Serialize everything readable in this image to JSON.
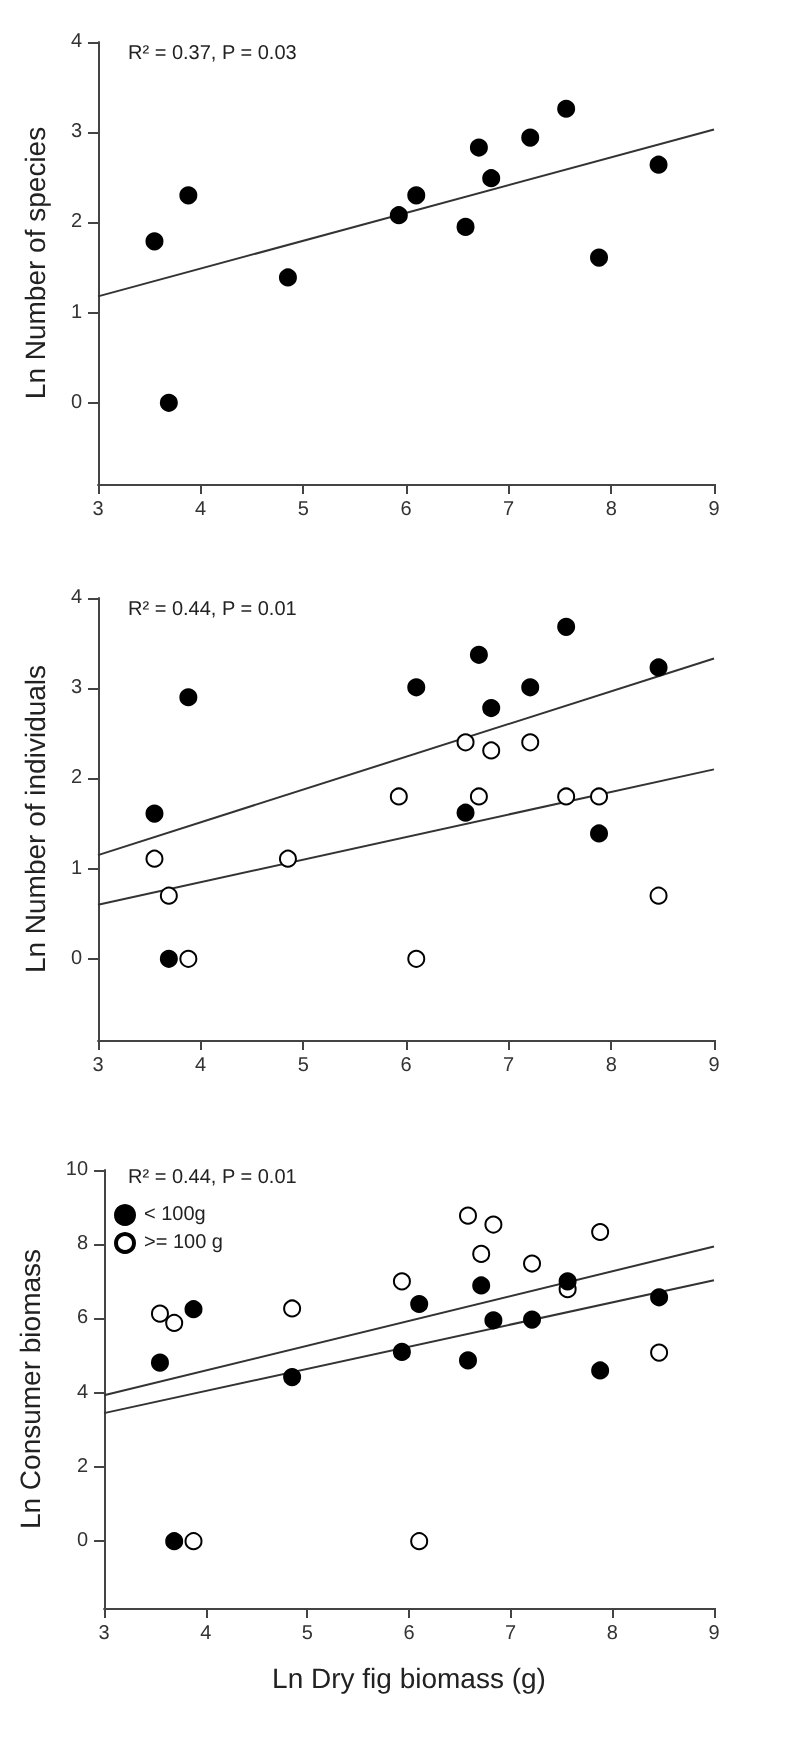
{
  "chart_data": [
    {
      "type": "scatter",
      "ylabel": "Ln Number of species",
      "annotations": [
        "R² = 0.37, P = 0.03"
      ],
      "xlim": [
        3,
        9
      ],
      "xticks": [
        3,
        4,
        5,
        6,
        7,
        8,
        9
      ],
      "ylim": [
        -0.9,
        4
      ],
      "yticks": [
        0,
        1,
        2,
        3,
        4
      ],
      "grid": false,
      "marker": "circle",
      "series": [
        {
          "color": "#000000",
          "x": [
            3.55,
            3.69,
            3.88,
            4.85,
            5.93,
            6.1,
            6.58,
            6.71,
            6.83,
            7.21,
            7.56,
            7.88,
            8.46
          ],
          "values": [
            1.79,
            0,
            2.3,
            1.39,
            2.08,
            2.3,
            1.95,
            2.83,
            2.49,
            2.94,
            3.26,
            1.61,
            2.64
          ]
        },
        {
          "type": "line",
          "color": "#333333",
          "x": [
            3,
            9
          ],
          "values": [
            1.18,
            3.03
          ],
          "marker": "none"
        }
      ]
    },
    {
      "type": "scatter",
      "ylabel": "Ln Number of individuals",
      "annotations": [
        "R² = 0.44, P = 0.01"
      ],
      "xlim": [
        3,
        9
      ],
      "xticks": [
        3,
        4,
        5,
        6,
        7,
        8,
        9
      ],
      "ylim": [
        -0.9,
        4
      ],
      "yticks": [
        0,
        1,
        2,
        3,
        4
      ],
      "grid": false,
      "marker": "circle",
      "series": [
        {
          "color": "#000000",
          "x": [
            3.55,
            3.69,
            3.88,
            6.1,
            6.58,
            6.71,
            6.83,
            7.21,
            7.56,
            7.88,
            8.46
          ],
          "values": [
            1.61,
            0,
            2.9,
            3.01,
            1.62,
            3.37,
            2.78,
            3.01,
            3.68,
            1.39,
            3.23
          ]
        },
        {
          "color": "#ffffff",
          "x": [
            3.55,
            3.69,
            3.88,
            4.85,
            5.93,
            6.1,
            6.58,
            6.71,
            6.83,
            7.21,
            7.56,
            7.88,
            8.46
          ],
          "values": [
            1.11,
            0.7,
            0,
            1.11,
            1.8,
            0,
            2.4,
            1.8,
            2.31,
            2.4,
            1.8,
            1.8,
            0.7
          ]
        },
        {
          "type": "line",
          "color": "#333333",
          "x": [
            3,
            9
          ],
          "values": [
            1.15,
            3.33
          ],
          "marker": "none"
        },
        {
          "type": "line",
          "color": "#333333",
          "x": [
            3,
            9
          ],
          "values": [
            0.6,
            2.1
          ],
          "marker": "none"
        }
      ]
    },
    {
      "type": "scatter",
      "xlabel": "Ln Dry fig biomass (g)",
      "ylabel": "Ln Consumer biomass",
      "annotations": [
        "R² = 0.44, P = 0.01"
      ],
      "xlim": [
        3,
        9
      ],
      "xticks": [
        3,
        4,
        5,
        6,
        7,
        8,
        9
      ],
      "ylim": [
        -1.8,
        10
      ],
      "yticks": [
        0,
        2,
        4,
        6,
        8,
        10
      ],
      "grid": false,
      "legend": "top left",
      "marker": "circle",
      "series": [
        {
          "name": "< 100g",
          "color": "#000000",
          "x": [
            3.55,
            3.69,
            3.88,
            4.85,
            5.93,
            6.1,
            6.58,
            6.71,
            6.83,
            7.21,
            7.56,
            7.88,
            8.46
          ],
          "values": [
            4.81,
            0,
            6.25,
            4.42,
            5.1,
            6.39,
            4.87,
            6.89,
            5.95,
            5.97,
            7.0,
            4.6,
            6.57
          ]
        },
        {
          "name": ">= 100 g",
          "color": "#ffffff",
          "x": [
            3.55,
            3.69,
            3.88,
            4.85,
            5.93,
            6.1,
            6.58,
            6.71,
            6.83,
            7.21,
            7.56,
            7.88,
            8.46
          ],
          "values": [
            6.13,
            5.88,
            0,
            6.27,
            7.0,
            0,
            8.77,
            7.74,
            8.53,
            7.48,
            6.79,
            8.33,
            5.08
          ]
        },
        {
          "type": "line",
          "color": "#333333",
          "x": [
            3,
            9
          ],
          "values": [
            3.93,
            7.94
          ],
          "marker": "none"
        },
        {
          "type": "line",
          "color": "#333333",
          "x": [
            3,
            9
          ],
          "values": [
            3.45,
            7.03
          ],
          "marker": "none"
        }
      ]
    }
  ]
}
